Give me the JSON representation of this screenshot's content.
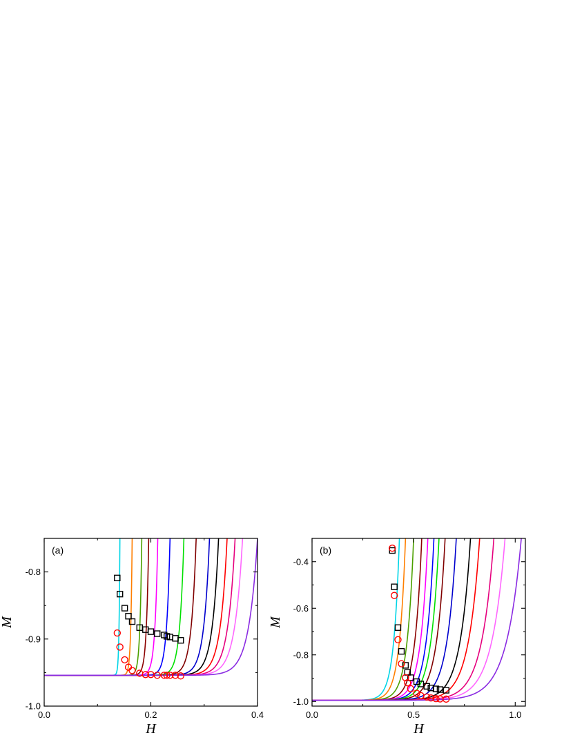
{
  "chart_data": [
    {
      "type": "line",
      "panel_label": "(a)",
      "xlabel": "H",
      "ylabel": "M",
      "xlim": [
        0.0,
        0.4
      ],
      "ylim": [
        -1.0,
        -0.75
      ],
      "xticks": [
        0.0,
        0.2,
        0.4
      ],
      "xtick_labels": [
        "0.0",
        "0.2",
        "0.4"
      ],
      "yticks": [
        -1.0,
        -0.9,
        -0.8
      ],
      "ytick_labels": [
        "-1.0",
        "-0.9",
        "-0.8"
      ],
      "grid": false,
      "curves": {
        "start": [
          0.0,
          -0.954
        ],
        "colors": [
          "#00d5e6",
          "#ff7f00",
          "#4ca000",
          "#8b0000",
          "#ff00ff",
          "#0000ff",
          "#00e000",
          "#800000",
          "#0000cd",
          "#000000",
          "#ff0000",
          "#e6007e",
          "#ff66ff",
          "#8a2be2"
        ],
        "exit_H": [
          0.142,
          0.165,
          0.183,
          0.196,
          0.213,
          0.236,
          0.262,
          0.285,
          0.31,
          0.327,
          0.343,
          0.358,
          0.372,
          0.4
        ],
        "exit_M": [
          -0.75,
          -0.75,
          -0.75,
          -0.75,
          -0.75,
          -0.75,
          -0.75,
          -0.75,
          -0.75,
          -0.75,
          -0.75,
          -0.75,
          -0.75,
          -0.75
        ],
        "stiffness": [
          0.0016,
          0.0026,
          0.0035,
          0.0043,
          0.0052,
          0.0064,
          0.0078,
          0.0091,
          0.0106,
          0.0116,
          0.0126,
          0.0135,
          0.0144,
          0.0162
        ]
      },
      "series": [
        {
          "marker": "square",
          "color": "#000000",
          "x": [
            0.137,
            0.142,
            0.151,
            0.158,
            0.165,
            0.179,
            0.19,
            0.2,
            0.212,
            0.225,
            0.23,
            0.236,
            0.246,
            0.256
          ],
          "y": [
            -0.809,
            -0.833,
            -0.854,
            -0.866,
            -0.874,
            -0.883,
            -0.886,
            -0.889,
            -0.892,
            -0.894,
            -0.896,
            -0.897,
            -0.899,
            -0.902
          ]
        },
        {
          "marker": "circle",
          "color": "#ff0000",
          "x": [
            0.137,
            0.142,
            0.151,
            0.158,
            0.165,
            0.179,
            0.19,
            0.2,
            0.212,
            0.225,
            0.23,
            0.236,
            0.246,
            0.256
          ],
          "y": [
            -0.891,
            -0.912,
            -0.931,
            -0.942,
            -0.947,
            -0.951,
            -0.953,
            -0.953,
            -0.954,
            -0.954,
            -0.954,
            -0.954,
            -0.954,
            -0.955
          ]
        }
      ]
    },
    {
      "type": "line",
      "panel_label": "(b)",
      "xlabel": "H",
      "ylabel": "M",
      "xlim": [
        0.0,
        1.05
      ],
      "ylim": [
        -1.02,
        -0.3
      ],
      "xticks": [
        0.0,
        0.5,
        1.0
      ],
      "xtick_labels": [
        "0.0",
        "0.5",
        "1.0"
      ],
      "yticks": [
        -1.0,
        -0.8,
        -0.6,
        -0.4
      ],
      "ytick_labels": [
        "-1.0",
        "-0.8",
        "-0.6",
        "-0.4"
      ],
      "grid": false,
      "curves": {
        "start": [
          0.0,
          -0.995
        ],
        "colors": [
          "#00d5e6",
          "#ff7f00",
          "#4ca000",
          "#8b0000",
          "#ff00ff",
          "#0000ff",
          "#00e000",
          "#800000",
          "#0000cd",
          "#000000",
          "#ff0000",
          "#e6007e",
          "#ff66ff",
          "#8a2be2"
        ],
        "exit_H": [
          0.43,
          0.46,
          0.5,
          0.54,
          0.57,
          0.6,
          0.625,
          0.655,
          0.71,
          0.78,
          0.825,
          0.895,
          0.95,
          1.03
        ],
        "exit_M": [
          -0.3,
          -0.3,
          -0.3,
          -0.3,
          -0.3,
          -0.3,
          -0.3,
          -0.3,
          -0.3,
          -0.3,
          -0.3,
          -0.3,
          -0.3,
          -0.3
        ],
        "stiffness": [
          0.028,
          0.03,
          0.032,
          0.034,
          0.036,
          0.038,
          0.04,
          0.042,
          0.046,
          0.051,
          0.055,
          0.06,
          0.065,
          0.072
        ]
      },
      "series": [
        {
          "marker": "square",
          "color": "#000000",
          "x": [
            0.395,
            0.405,
            0.423,
            0.44,
            0.46,
            0.47,
            0.485,
            0.515,
            0.535,
            0.565,
            0.585,
            0.61,
            0.63,
            0.66
          ],
          "y": [
            -0.352,
            -0.508,
            -0.683,
            -0.785,
            -0.845,
            -0.875,
            -0.898,
            -0.915,
            -0.925,
            -0.935,
            -0.942,
            -0.946,
            -0.949,
            -0.952
          ]
        },
        {
          "marker": "circle",
          "color": "#ff0000",
          "x": [
            0.395,
            0.405,
            0.423,
            0.44,
            0.46,
            0.47,
            0.485,
            0.515,
            0.535,
            0.565,
            0.585,
            0.61,
            0.63,
            0.66
          ],
          "y": [
            -0.342,
            -0.545,
            -0.735,
            -0.838,
            -0.898,
            -0.92,
            -0.945,
            -0.965,
            -0.975,
            -0.981,
            -0.985,
            -0.988,
            -0.989,
            -0.99
          ]
        }
      ]
    }
  ]
}
